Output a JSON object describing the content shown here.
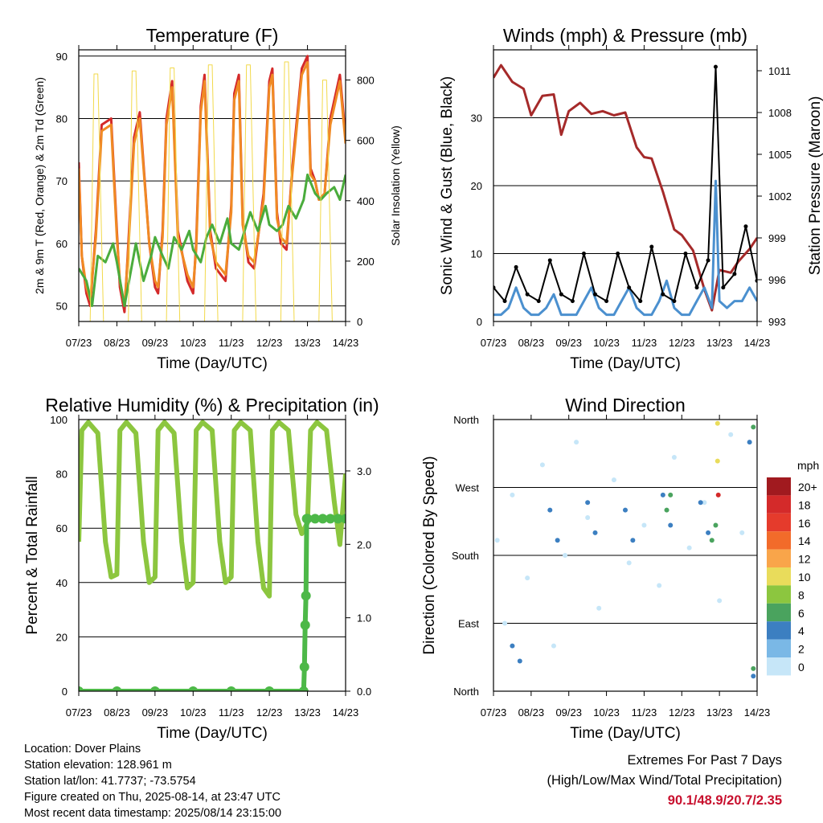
{
  "x_ticks": [
    "07/23",
    "08/23",
    "09/23",
    "10/23",
    "11/23",
    "12/23",
    "13/23",
    "14/23"
  ],
  "info": {
    "location": "Location: Dover Plains",
    "elevation": "Station elevation: 128.961 m",
    "latlon": "Station lat/lon: 41.7737; -73.5754",
    "created": "Figure created on Thu, 2025-08-14, at 23:47 UTC",
    "recent": "Most recent data timestamp: 2025/08/14 23:15:00"
  },
  "extremes": {
    "title": "Extremes For Past 7 Days",
    "subtitle": "(High/Low/Max Wind/Total Precipitation)",
    "values": "90.1/48.9/20.7/2.35"
  },
  "chart_data": [
    {
      "type": "line",
      "title": "Temperature (F)",
      "xlabel": "Time (Day/UTC)",
      "ylabel": "2m & 9m T (Red, Orange) & 2m Td (Green)",
      "ylabel_right": "Solar Insolation (Yellow)",
      "ylim": [
        47.5,
        91
      ],
      "ylim_right": [
        0,
        900
      ],
      "yticks": [
        50,
        60,
        70,
        80,
        90
      ],
      "yticks_right": [
        0,
        200,
        400,
        600,
        800
      ],
      "grid": true,
      "series": [
        {
          "color": "#d42a2a",
          "x": [
            0,
            0.08,
            0.2,
            0.3,
            0.45,
            0.6,
            0.85,
            1,
            1.08,
            1.2,
            1.3,
            1.45,
            1.6,
            1.85,
            2,
            2.08,
            2.2,
            2.3,
            2.45,
            2.6,
            2.85,
            3,
            3.08,
            3.2,
            3.3,
            3.45,
            3.6,
            3.85,
            4,
            4.08,
            4.2,
            4.3,
            4.45,
            4.6,
            4.85,
            5,
            5.08,
            5.2,
            5.3,
            5.45,
            5.6,
            5.85,
            6,
            6.08,
            6.2,
            6.3,
            6.45,
            6.6,
            6.85,
            7
          ],
          "y": [
            73,
            58,
            52,
            50,
            62,
            79,
            80,
            62,
            53,
            49,
            60,
            77,
            81,
            60,
            53,
            52,
            62,
            80,
            86,
            62,
            54,
            52,
            60,
            82,
            87,
            62,
            56,
            54,
            66,
            84,
            87,
            64,
            57,
            56,
            68,
            86,
            88,
            65,
            60,
            59,
            72,
            88,
            90,
            72,
            70,
            67,
            68,
            80,
            87,
            77
          ]
        },
        {
          "color": "#f08a24",
          "x": [
            0,
            0.08,
            0.2,
            0.3,
            0.45,
            0.6,
            0.85,
            1,
            1.08,
            1.2,
            1.3,
            1.45,
            1.6,
            1.85,
            2,
            2.08,
            2.2,
            2.3,
            2.45,
            2.6,
            2.85,
            3,
            3.08,
            3.2,
            3.3,
            3.45,
            3.6,
            3.85,
            4,
            4.08,
            4.2,
            4.3,
            4.45,
            4.6,
            4.85,
            5,
            5.08,
            5.2,
            5.3,
            5.45,
            5.6,
            5.85,
            6,
            6.08,
            6.2,
            6.3,
            6.45,
            6.6,
            6.85,
            7
          ],
          "y": [
            72,
            58,
            53,
            51,
            61,
            78,
            79,
            61,
            54,
            50,
            59,
            76,
            80,
            60,
            54,
            53,
            61,
            79,
            85,
            61,
            55,
            53,
            59,
            81,
            86,
            61,
            57,
            55,
            65,
            83,
            86,
            63,
            58,
            57,
            67,
            85,
            87,
            64,
            61,
            60,
            71,
            87,
            89,
            71,
            70,
            67,
            68,
            79,
            86,
            76
          ]
        },
        {
          "color": "#4aac3c",
          "x": [
            0,
            0.2,
            0.35,
            0.5,
            0.7,
            0.9,
            1,
            1.2,
            1.35,
            1.5,
            1.7,
            1.9,
            2,
            2.2,
            2.35,
            2.5,
            2.7,
            2.9,
            3,
            3.2,
            3.35,
            3.5,
            3.7,
            3.9,
            4,
            4.2,
            4.35,
            4.5,
            4.7,
            4.9,
            5,
            5.2,
            5.35,
            5.5,
            5.7,
            5.9,
            6,
            6.2,
            6.35,
            6.5,
            6.7,
            6.85,
            7
          ],
          "y": [
            56,
            54,
            50,
            58,
            57,
            60,
            57,
            50,
            55,
            60,
            54,
            58,
            61,
            58,
            56,
            61,
            59,
            62,
            59,
            57,
            61,
            63,
            60,
            64,
            60,
            59,
            62,
            65,
            62,
            66,
            63,
            62,
            63,
            66,
            64,
            67,
            71,
            68,
            67,
            68,
            69,
            67,
            71
          ]
        },
        {
          "color": "#f2d94a",
          "name": "Solar Insolation",
          "axis": "right",
          "x": [
            0.3,
            0.4,
            0.5,
            0.65,
            1.3,
            1.4,
            1.5,
            1.65,
            2.3,
            2.4,
            2.5,
            2.65,
            3.3,
            3.4,
            3.5,
            3.65,
            4.3,
            4.4,
            4.5,
            4.65,
            5.3,
            5.4,
            5.5,
            5.65,
            6.3,
            6.4,
            6.5,
            6.65
          ],
          "y": [
            0,
            820,
            820,
            0,
            0,
            830,
            830,
            0,
            0,
            840,
            840,
            0,
            0,
            850,
            850,
            0,
            0,
            850,
            850,
            0,
            0,
            860,
            860,
            0,
            0,
            800,
            800,
            0
          ]
        }
      ]
    },
    {
      "type": "line",
      "title": "Winds (mph) & Pressure (mb)",
      "xlabel": "Time (Day/UTC)",
      "ylabel": "Sonic Wind & Gust (Blue, Black)",
      "ylabel_right": "Station Pressure (Maroon)",
      "ylim": [
        0,
        40
      ],
      "ylim_right": [
        993,
        1012.5
      ],
      "yticks": [
        0,
        10,
        20,
        30
      ],
      "yticks_right": [
        993,
        996,
        999,
        1002,
        1005,
        1008,
        1011
      ],
      "grid": true,
      "series": [
        {
          "color": "#a52a2a",
          "axis": "right",
          "x": [
            0,
            0.2,
            0.5,
            0.8,
            1.0,
            1.3,
            1.6,
            1.8,
            2.0,
            2.3,
            2.6,
            2.9,
            3.2,
            3.5,
            3.8,
            4.0,
            4.2,
            4.5,
            4.8,
            5.0,
            5.3,
            5.6,
            5.8,
            6.0,
            6.3,
            6.5,
            6.8,
            7.0
          ],
          "y": [
            1010.5,
            1011.4,
            1010.2,
            1009.7,
            1007.8,
            1009.2,
            1009.3,
            1006.4,
            1008.1,
            1008.7,
            1007.9,
            1008.1,
            1007.8,
            1008.0,
            1005.5,
            1004.8,
            1004.7,
            1002.3,
            999.6,
            999.2,
            998.1,
            995.3,
            993.8,
            996.7,
            996.5,
            997.3,
            998.2,
            999.0
          ]
        },
        {
          "color": "#4b90cf",
          "x": [
            0,
            0.2,
            0.4,
            0.6,
            0.8,
            1.0,
            1.2,
            1.4,
            1.6,
            1.8,
            2.0,
            2.2,
            2.4,
            2.6,
            2.8,
            3.0,
            3.2,
            3.4,
            3.6,
            3.8,
            4.0,
            4.2,
            4.4,
            4.6,
            4.8,
            5.0,
            5.2,
            5.4,
            5.6,
            5.8,
            5.9,
            6.0,
            6.2,
            6.4,
            6.6,
            6.8,
            7.0
          ],
          "y": [
            1,
            1,
            2,
            5,
            2,
            1,
            1,
            2,
            4,
            1,
            1,
            1,
            3,
            5,
            2,
            1,
            1,
            3,
            5,
            2,
            1,
            1,
            3,
            6,
            2,
            1,
            1,
            3,
            5,
            2,
            20.7,
            3,
            2,
            3,
            3,
            5,
            3
          ]
        },
        {
          "color": "#000000",
          "name": "Gust",
          "x": [
            0,
            0.3,
            0.6,
            0.9,
            1.2,
            1.5,
            1.8,
            2.1,
            2.4,
            2.7,
            3.0,
            3.3,
            3.6,
            3.9,
            4.2,
            4.5,
            4.8,
            5.1,
            5.4,
            5.7,
            5.9,
            6.1,
            6.4,
            6.7,
            7.0
          ],
          "y": [
            5,
            3,
            8,
            4,
            3,
            9,
            4,
            3,
            10,
            4,
            3,
            10,
            5,
            3,
            11,
            4,
            3,
            10,
            5,
            9,
            37.5,
            5,
            7,
            14,
            6
          ]
        }
      ]
    },
    {
      "type": "line",
      "title": "Relative Humidity (%) & Precipitation (in)",
      "xlabel": "Time (Day/UTC)",
      "ylabel": "Percent & Total Rainfall",
      "ylim": [
        0,
        100
      ],
      "ylim_right": [
        0,
        3.7
      ],
      "yticks": [
        0,
        20,
        40,
        60,
        80,
        100
      ],
      "yticks_right": [
        "0.0",
        "1.0",
        "2.0",
        "3.0"
      ],
      "grid": true,
      "series": [
        {
          "color": "#8cc63f",
          "name": "Relative Humidity",
          "x": [
            0,
            0.08,
            0.25,
            0.5,
            0.7,
            0.85,
            1.0,
            1.08,
            1.25,
            1.5,
            1.7,
            1.85,
            2.0,
            2.08,
            2.25,
            2.5,
            2.7,
            2.85,
            3.0,
            3.08,
            3.25,
            3.5,
            3.7,
            3.85,
            4.0,
            4.08,
            4.25,
            4.5,
            4.7,
            4.85,
            5.0,
            5.08,
            5.25,
            5.5,
            5.7,
            5.85,
            6.0,
            6.08,
            6.25,
            6.5,
            6.7,
            6.85,
            7.0
          ],
          "y": [
            55,
            96,
            99,
            95,
            55,
            42,
            43,
            96,
            99,
            95,
            55,
            40,
            42,
            96,
            99,
            95,
            55,
            38,
            40,
            96,
            99,
            96,
            55,
            40,
            42,
            96,
            99,
            96,
            55,
            38,
            35,
            96,
            99,
            96,
            65,
            58,
            62,
            96,
            99,
            96,
            70,
            54,
            80
          ]
        },
        {
          "color": "#4db848",
          "name": "Total Rainfall",
          "axis": "right",
          "x": [
            0,
            1,
            2,
            3,
            4,
            5,
            5.9,
            5.92,
            5.94,
            5.96,
            5.98,
            6.0,
            6.2,
            6.4,
            6.6,
            6.8,
            7.0
          ],
          "y": [
            0,
            0,
            0,
            0,
            0,
            0,
            0,
            0.33,
            0.9,
            1.3,
            2.35,
            2.35,
            2.35,
            2.35,
            2.35,
            2.35,
            2.35
          ]
        }
      ]
    },
    {
      "type": "scatter",
      "title": "Wind Direction",
      "xlabel": "Time (Day/UTC)",
      "ylabel": "Direction (Colored By Speed)",
      "yticks": [
        "North",
        "East",
        "South",
        "West",
        "North"
      ],
      "ylim": [
        0,
        360
      ],
      "grid": true,
      "legend_title": "mph",
      "legend_labels": [
        "20+",
        "18",
        "16",
        "14",
        "12",
        "10",
        "8",
        "6",
        "4",
        "2",
        "0"
      ],
      "legend_colors": [
        "#a11a1f",
        "#d42a2a",
        "#e53b2c",
        "#f26b2a",
        "#f9a54a",
        "#e9dc5b",
        "#8cc63f",
        "#4aa35e",
        "#3c7fc1",
        "#7ab8e6",
        "#c6e6f8"
      ],
      "series": [
        {
          "color": "#c6e6f8",
          "x": [
            0.1,
            0.3,
            0.5,
            0.9,
            1.3,
            1.6,
            1.9,
            2.2,
            2.5,
            2.8,
            3.2,
            3.6,
            4.0,
            4.4,
            4.8,
            5.2,
            5.6,
            6.0,
            6.3,
            6.6
          ],
          "y": [
            200,
            90,
            260,
            150,
            300,
            60,
            180,
            330,
            230,
            110,
            280,
            170,
            220,
            140,
            310,
            190,
            250,
            120,
            340,
            210
          ]
        },
        {
          "color": "#3c7fc1",
          "x": [
            0.5,
            0.7,
            1.5,
            1.7,
            2.5,
            2.7,
            3.5,
            3.7,
            4.5,
            4.7,
            5.5,
            5.7,
            6.8,
            6.9
          ],
          "y": [
            60,
            40,
            240,
            200,
            250,
            210,
            240,
            200,
            260,
            220,
            250,
            210,
            330,
            20
          ]
        },
        {
          "color": "#4aa35e",
          "x": [
            4.6,
            4.7,
            5.8,
            5.9,
            6.9,
            6.9
          ],
          "y": [
            240,
            260,
            200,
            220,
            350,
            30
          ]
        },
        {
          "color": "#e9dc5b",
          "x": [
            5.95,
            5.95
          ],
          "y": [
            355,
            305
          ]
        },
        {
          "color": "#d42a2a",
          "x": [
            5.97
          ],
          "y": [
            260
          ]
        }
      ]
    }
  ]
}
